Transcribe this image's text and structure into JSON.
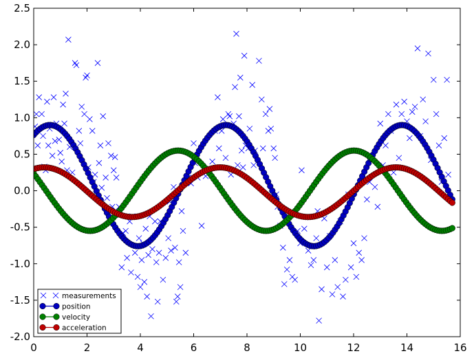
{
  "chart_data": {
    "type": "line",
    "xlim": [
      0,
      16
    ],
    "ylim": [
      -2.0,
      2.5
    ],
    "x_ticks": [
      "0",
      "2",
      "4",
      "6",
      "8",
      "10",
      "12",
      "14",
      "16"
    ],
    "y_ticks": [
      "-2.0",
      "-1.5",
      "-1.0",
      "-0.5",
      "0.0",
      "0.5",
      "1.0",
      "1.5",
      "2.0",
      "2.5"
    ],
    "legend_position": "bottom-left",
    "grid": false,
    "series": [
      {
        "name": "measurements",
        "kind": "scatter",
        "marker": "x",
        "color": "#0000ff",
        "points": [
          [
            0.05,
            0.88
          ],
          [
            0.1,
            1.05
          ],
          [
            0.15,
            0.62
          ],
          [
            0.2,
            1.28
          ],
          [
            0.3,
            1.05
          ],
          [
            0.35,
            0.75
          ],
          [
            0.4,
            0.33
          ],
          [
            0.45,
            0.28
          ],
          [
            0.5,
            1.22
          ],
          [
            0.55,
            0.62
          ],
          [
            0.6,
            0.85
          ],
          [
            0.7,
            0.48
          ],
          [
            0.75,
            1.28
          ],
          [
            0.8,
            0.68
          ],
          [
            0.85,
            0.92
          ],
          [
            0.95,
            0.7
          ],
          [
            1.0,
            0.52
          ],
          [
            1.05,
            0.4
          ],
          [
            1.1,
            1.18
          ],
          [
            1.15,
            0.92
          ],
          [
            1.2,
            1.33
          ],
          [
            1.25,
            0.28
          ],
          [
            1.3,
            2.07
          ],
          [
            1.35,
            0.6
          ],
          [
            1.45,
            0.25
          ],
          [
            1.55,
            1.75
          ],
          [
            1.6,
            1.72
          ],
          [
            1.7,
            0.82
          ],
          [
            1.75,
            0.65
          ],
          [
            1.8,
            1.15
          ],
          [
            1.9,
            1.05
          ],
          [
            1.95,
            1.55
          ],
          [
            2.0,
            1.58
          ],
          [
            2.05,
            0.32
          ],
          [
            2.1,
            0.98
          ],
          [
            2.2,
            0.82
          ],
          [
            2.25,
            0.12
          ],
          [
            2.3,
            0.22
          ],
          [
            2.4,
            1.75
          ],
          [
            2.45,
            0.38
          ],
          [
            2.5,
            0.62
          ],
          [
            2.55,
            0.04
          ],
          [
            2.6,
            1.02
          ],
          [
            2.7,
            0.18
          ],
          [
            2.75,
            -0.1
          ],
          [
            2.8,
            0.65
          ],
          [
            2.9,
            0.48
          ],
          [
            2.95,
            -0.22
          ],
          [
            3.0,
            0.28
          ],
          [
            3.05,
            0.46
          ],
          [
            3.1,
            0.18
          ],
          [
            3.2,
            -0.22
          ],
          [
            3.3,
            -1.05
          ],
          [
            3.35,
            -0.58
          ],
          [
            3.45,
            -0.55
          ],
          [
            3.5,
            -0.92
          ],
          [
            3.6,
            -0.42
          ],
          [
            3.65,
            -1.12
          ],
          [
            3.7,
            -0.35
          ],
          [
            3.8,
            -0.85
          ],
          [
            3.9,
            -1.18
          ],
          [
            3.95,
            -0.65
          ],
          [
            4.0,
            -1.32
          ],
          [
            4.05,
            -0.95
          ],
          [
            4.1,
            -0.72
          ],
          [
            4.15,
            -1.25
          ],
          [
            4.2,
            -0.52
          ],
          [
            4.25,
            -1.45
          ],
          [
            4.3,
            -0.88
          ],
          [
            4.35,
            -0.35
          ],
          [
            4.4,
            -1.72
          ],
          [
            4.45,
            -0.8
          ],
          [
            4.55,
            -0.42
          ],
          [
            4.6,
            -0.98
          ],
          [
            4.65,
            -1.52
          ],
          [
            4.7,
            -0.85
          ],
          [
            4.75,
            -0.42
          ],
          [
            4.85,
            -1.22
          ],
          [
            4.95,
            -0.92
          ],
          [
            5.05,
            -0.65
          ],
          [
            5.1,
            -0.15
          ],
          [
            5.15,
            -0.82
          ],
          [
            5.25,
            0.05
          ],
          [
            5.3,
            -0.78
          ],
          [
            5.35,
            -1.52
          ],
          [
            5.4,
            -1.45
          ],
          [
            5.45,
            -0.98
          ],
          [
            5.5,
            -1.32
          ],
          [
            5.55,
            -0.28
          ],
          [
            5.6,
            -0.55
          ],
          [
            5.7,
            -0.85
          ],
          [
            5.8,
            0.18
          ],
          [
            5.9,
            0.1
          ],
          [
            6.0,
            0.65
          ],
          [
            6.05,
            0.38
          ],
          [
            6.15,
            0.18
          ],
          [
            6.3,
            -0.48
          ],
          [
            6.45,
            0.2
          ],
          [
            6.55,
            0.3
          ],
          [
            6.7,
            0.4
          ],
          [
            6.8,
            0.82
          ],
          [
            6.9,
            1.28
          ],
          [
            6.95,
            0.58
          ],
          [
            7.05,
            0.82
          ],
          [
            7.1,
            0.98
          ],
          [
            7.2,
            0.45
          ],
          [
            7.3,
            1.05
          ],
          [
            7.35,
            1.02
          ],
          [
            7.4,
            0.22
          ],
          [
            7.5,
            0.92
          ],
          [
            7.55,
            1.42
          ],
          [
            7.6,
            2.15
          ],
          [
            7.65,
            0.35
          ],
          [
            7.7,
            1.02
          ],
          [
            7.75,
            1.55
          ],
          [
            7.8,
            0.55
          ],
          [
            7.85,
            0.32
          ],
          [
            7.9,
            1.85
          ],
          [
            7.95,
            0.62
          ],
          [
            8.05,
            0.58
          ],
          [
            8.1,
            0.85
          ],
          [
            8.2,
            1.45
          ],
          [
            8.25,
            0.35
          ],
          [
            8.3,
            0.55
          ],
          [
            8.45,
            1.78
          ],
          [
            8.55,
            1.25
          ],
          [
            8.6,
            0.58
          ],
          [
            8.7,
            1.05
          ],
          [
            8.8,
            0.82
          ],
          [
            8.85,
            1.12
          ],
          [
            8.9,
            0.85
          ],
          [
            9.0,
            0.58
          ],
          [
            9.05,
            0.45
          ],
          [
            9.1,
            -0.05
          ],
          [
            9.15,
            -0.22
          ],
          [
            9.25,
            -0.48
          ],
          [
            9.35,
            -0.78
          ],
          [
            9.4,
            -1.28
          ],
          [
            9.5,
            -1.08
          ],
          [
            9.6,
            -0.95
          ],
          [
            9.7,
            -1.18
          ],
          [
            9.8,
            -1.22
          ],
          [
            9.9,
            -0.55
          ],
          [
            10.0,
            -0.72
          ],
          [
            10.05,
            0.28
          ],
          [
            10.15,
            -0.52
          ],
          [
            10.3,
            -0.82
          ],
          [
            10.4,
            -1.02
          ],
          [
            10.5,
            -0.95
          ],
          [
            10.6,
            -0.65
          ],
          [
            10.65,
            -0.28
          ],
          [
            10.7,
            -1.78
          ],
          [
            10.8,
            -1.35
          ],
          [
            10.9,
            -0.38
          ],
          [
            11.0,
            -1.05
          ],
          [
            11.1,
            -0.62
          ],
          [
            11.2,
            -1.42
          ],
          [
            11.3,
            -0.95
          ],
          [
            11.4,
            -1.32
          ],
          [
            11.5,
            -0.42
          ],
          [
            11.6,
            -1.45
          ],
          [
            11.7,
            -1.22
          ],
          [
            11.8,
            -0.05
          ],
          [
            11.9,
            -1.05
          ],
          [
            12.0,
            -0.72
          ],
          [
            12.1,
            -1.18
          ],
          [
            12.2,
            -0.85
          ],
          [
            12.3,
            -0.95
          ],
          [
            12.4,
            -0.65
          ],
          [
            12.5,
            -0.12
          ],
          [
            12.6,
            0.12
          ],
          [
            12.7,
            0.42
          ],
          [
            12.8,
            0.05
          ],
          [
            12.9,
            -0.22
          ],
          [
            13.0,
            0.92
          ],
          [
            13.1,
            0.35
          ],
          [
            13.2,
            0.62
          ],
          [
            13.3,
            1.05
          ],
          [
            13.4,
            0.82
          ],
          [
            13.5,
            0.25
          ],
          [
            13.6,
            1.18
          ],
          [
            13.7,
            0.45
          ],
          [
            13.8,
            1.05
          ],
          [
            13.9,
            1.22
          ],
          [
            14.0,
            0.95
          ],
          [
            14.1,
            0.72
          ],
          [
            14.2,
            1.08
          ],
          [
            14.3,
            1.15
          ],
          [
            14.4,
            1.95
          ],
          [
            14.5,
            0.75
          ],
          [
            14.6,
            1.25
          ],
          [
            14.7,
            0.95
          ],
          [
            14.8,
            1.88
          ],
          [
            14.9,
            0.42
          ],
          [
            15.0,
            1.52
          ],
          [
            15.1,
            1.05
          ],
          [
            15.2,
            0.62
          ],
          [
            15.3,
            0.12
          ],
          [
            15.4,
            0.72
          ],
          [
            15.5,
            1.52
          ],
          [
            15.55,
            0.22
          ],
          [
            15.65,
            -0.12
          ]
        ]
      },
      {
        "name": "position",
        "kind": "line",
        "color": "#0000bf",
        "amp": 0.83,
        "period": 6.6,
        "phase": 0.99,
        "offset": 0.07
      },
      {
        "name": "velocity",
        "kind": "line",
        "color": "#007f00",
        "amp": 0.55,
        "period": 6.6,
        "phase": 2.7,
        "offset": 0.0
      },
      {
        "name": "acceleration",
        "kind": "line",
        "color": "#bf0000",
        "amp": 0.34,
        "period": 6.6,
        "phase": 1.2,
        "offset": -0.02
      }
    ],
    "line_x_range": [
      0,
      15.7
    ],
    "line_samples": 200
  }
}
